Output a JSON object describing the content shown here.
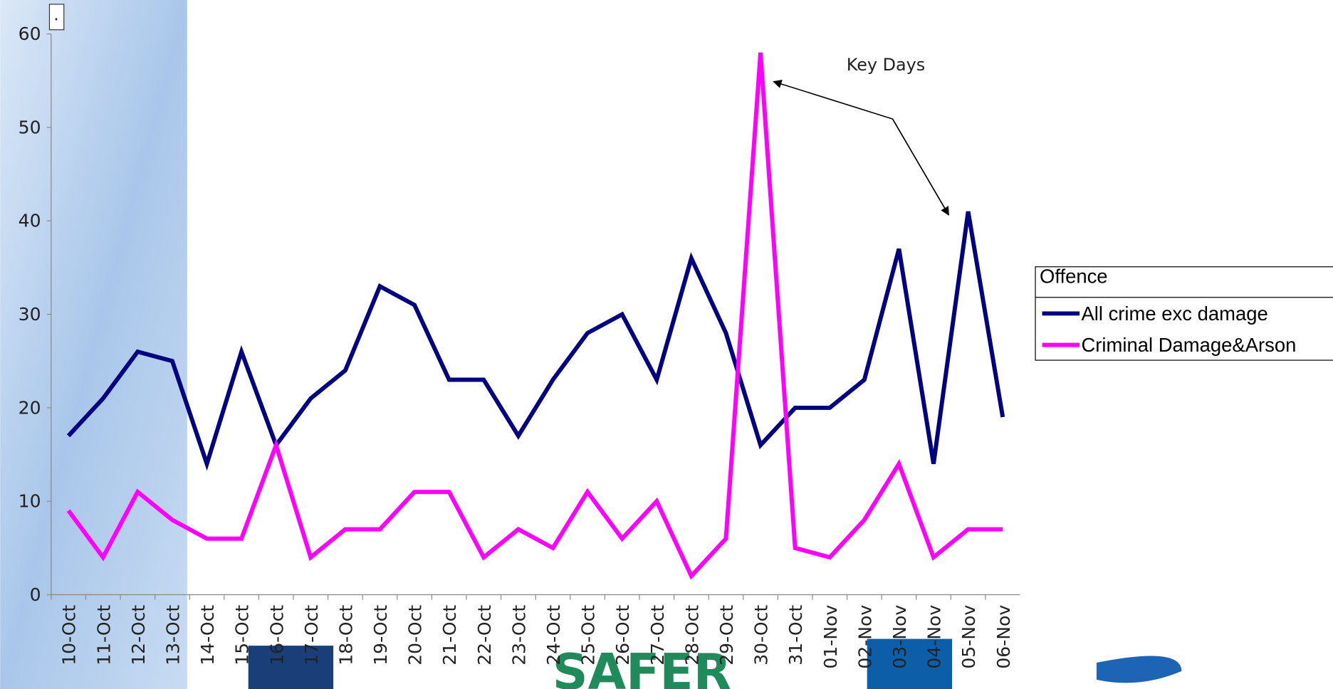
{
  "chart_data": {
    "type": "line",
    "note": ".",
    "annotation": "Key Days",
    "legend_title": "Offence",
    "categories": [
      "10-Oct",
      "11-Oct",
      "12-Oct",
      "13-Oct",
      "14-Oct",
      "15-Oct",
      "16-Oct",
      "17-Oct",
      "18-Oct",
      "19-Oct",
      "20-Oct",
      "21-Oct",
      "22-Oct",
      "23-Oct",
      "24-Oct",
      "25-Oct",
      "26-Oct",
      "27-Oct",
      "28-Oct",
      "29-Oct",
      "30-Oct",
      "31-Oct",
      "01-Nov",
      "02-Nov",
      "03-Nov",
      "04-Nov",
      "05-Nov",
      "06-Nov"
    ],
    "series": [
      {
        "name": "All crime exc damage",
        "color": "#000080",
        "values": [
          17,
          21,
          26,
          25,
          14,
          26,
          16,
          21,
          24,
          33,
          31,
          23,
          23,
          17,
          23,
          28,
          30,
          23,
          36,
          28,
          16,
          20,
          20,
          23,
          37,
          14,
          41,
          19
        ]
      },
      {
        "name": "Criminal Damage&Arson",
        "color": "#ff00ff",
        "values": [
          9,
          4,
          11,
          8,
          6,
          6,
          16,
          4,
          7,
          7,
          11,
          11,
          4,
          7,
          5,
          11,
          6,
          10,
          2,
          6,
          58,
          5,
          4,
          8,
          14,
          4,
          7,
          7
        ]
      }
    ],
    "ylim": [
      0,
      60
    ],
    "yticks": [
      0,
      10,
      20,
      30,
      40,
      50,
      60
    ],
    "grid": false
  }
}
